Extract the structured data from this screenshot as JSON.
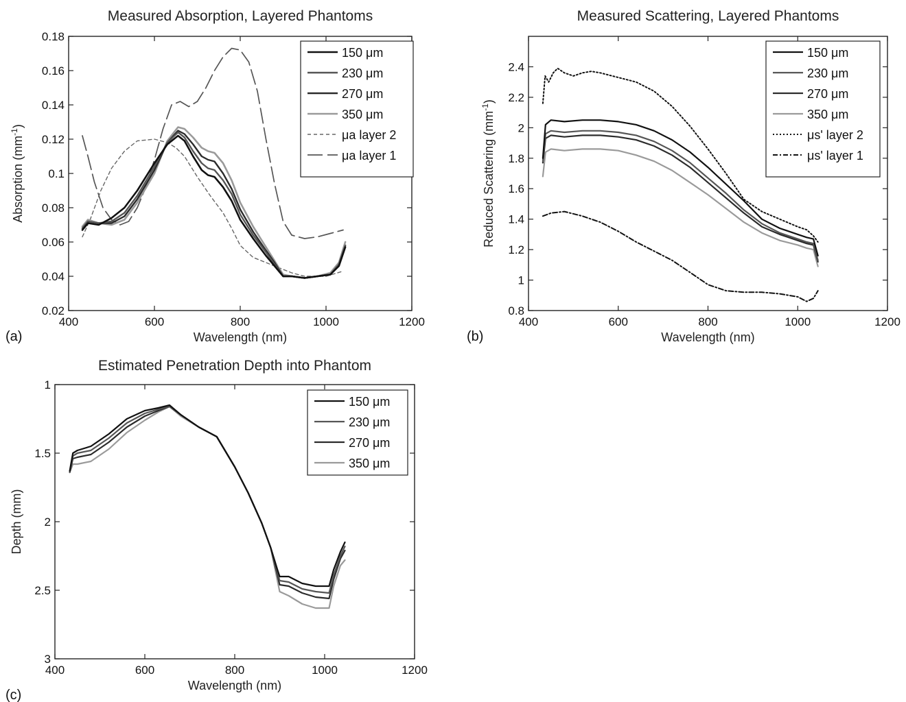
{
  "panel_letters": [
    "(a)",
    "(b)",
    "(c)"
  ],
  "chart_data": [
    {
      "type": "line",
      "title": "Measured Absorption, Layered Phantoms",
      "xlabel": "Wavelength (nm)",
      "ylabel": "Absorption (mm",
      "ylabel_sup": "-1",
      "ylabel_end": ")",
      "xlim": [
        400,
        1200
      ],
      "ylim": [
        0.02,
        0.18
      ],
      "y_reversed": false,
      "grid": false,
      "legend_position": "top-right",
      "xticks": [
        400,
        600,
        800,
        1000,
        1200
      ],
      "xtick_labels": [
        "400",
        "600",
        "800",
        "1000",
        "1200"
      ],
      "yticks": [
        0.02,
        0.04,
        0.06,
        0.08,
        0.1,
        0.12,
        0.14,
        0.16,
        0.18
      ],
      "ytick_labels": [
        "0.02",
        "0.04",
        "0.06",
        "0.08",
        "0.1",
        "0.12",
        "0.14",
        "0.16",
        "0.18"
      ],
      "series": [
        {
          "name": "150 μm",
          "color": "#111111",
          "dash": "",
          "width": 2.6,
          "x": [
            432,
            445,
            470,
            500,
            530,
            560,
            600,
            630,
            655,
            670,
            690,
            710,
            725,
            740,
            760,
            780,
            800,
            830,
            860,
            880,
            900,
            920,
            950,
            980,
            1010,
            1030,
            1045
          ],
          "y": [
            0.067,
            0.071,
            0.07,
            0.074,
            0.08,
            0.09,
            0.106,
            0.117,
            0.122,
            0.119,
            0.11,
            0.102,
            0.099,
            0.098,
            0.092,
            0.084,
            0.073,
            0.062,
            0.052,
            0.046,
            0.04,
            0.04,
            0.039,
            0.04,
            0.041,
            0.046,
            0.057
          ]
        },
        {
          "name": "230 μm",
          "color": "#555555",
          "dash": "",
          "width": 2.4,
          "x": [
            432,
            445,
            470,
            500,
            530,
            560,
            600,
            630,
            655,
            670,
            690,
            710,
            725,
            740,
            760,
            780,
            800,
            830,
            860,
            880,
            900,
            920,
            950,
            980,
            1010,
            1030,
            1045
          ],
          "y": [
            0.068,
            0.072,
            0.071,
            0.072,
            0.077,
            0.087,
            0.104,
            0.118,
            0.124,
            0.121,
            0.113,
            0.106,
            0.103,
            0.102,
            0.096,
            0.088,
            0.076,
            0.064,
            0.054,
            0.047,
            0.04,
            0.04,
            0.039,
            0.04,
            0.041,
            0.047,
            0.058
          ]
        },
        {
          "name": "270 μm",
          "color": "#2b2b2b",
          "dash": "",
          "width": 2.4,
          "x": [
            432,
            445,
            470,
            500,
            530,
            560,
            600,
            630,
            655,
            670,
            690,
            710,
            725,
            740,
            760,
            780,
            800,
            830,
            860,
            880,
            900,
            920,
            950,
            980,
            1010,
            1030,
            1045
          ],
          "y": [
            0.068,
            0.072,
            0.071,
            0.071,
            0.075,
            0.085,
            0.102,
            0.118,
            0.125,
            0.123,
            0.117,
            0.11,
            0.108,
            0.107,
            0.1,
            0.091,
            0.079,
            0.066,
            0.055,
            0.048,
            0.04,
            0.04,
            0.039,
            0.04,
            0.041,
            0.047,
            0.058
          ]
        },
        {
          "name": "350 μm",
          "color": "#9a9a9a",
          "dash": "",
          "width": 2.6,
          "x": [
            432,
            445,
            470,
            500,
            530,
            560,
            600,
            630,
            655,
            670,
            690,
            710,
            725,
            740,
            760,
            780,
            800,
            830,
            860,
            880,
            900,
            920,
            950,
            980,
            1010,
            1030,
            1045
          ],
          "y": [
            0.069,
            0.073,
            0.071,
            0.07,
            0.073,
            0.083,
            0.1,
            0.119,
            0.127,
            0.126,
            0.121,
            0.115,
            0.113,
            0.112,
            0.106,
            0.096,
            0.083,
            0.069,
            0.057,
            0.049,
            0.041,
            0.04,
            0.039,
            0.04,
            0.042,
            0.048,
            0.06
          ]
        },
        {
          "name": "μa layer 2",
          "color": "#666666",
          "dash": "5,4",
          "width": 1.4,
          "x": [
            432,
            450,
            475,
            500,
            530,
            560,
            600,
            630,
            650,
            670,
            700,
            730,
            760,
            780,
            800,
            830,
            860,
            890,
            920,
            950,
            1000,
            1040
          ],
          "y": [
            0.063,
            0.073,
            0.09,
            0.103,
            0.113,
            0.119,
            0.12,
            0.118,
            0.115,
            0.11,
            0.098,
            0.087,
            0.077,
            0.068,
            0.058,
            0.051,
            0.048,
            0.045,
            0.042,
            0.04,
            0.04,
            0.043
          ]
        },
        {
          "name": "μa layer 1",
          "color": "#555555",
          "dash": "22,7",
          "width": 1.7,
          "x": [
            432,
            445,
            460,
            480,
            500,
            520,
            540,
            560,
            580,
            600,
            620,
            640,
            660,
            680,
            700,
            720,
            740,
            760,
            780,
            800,
            820,
            840,
            860,
            880,
            900,
            920,
            950,
            980,
            1010,
            1040
          ],
          "y": [
            0.122,
            0.11,
            0.095,
            0.08,
            0.073,
            0.07,
            0.072,
            0.08,
            0.092,
            0.108,
            0.126,
            0.14,
            0.142,
            0.139,
            0.142,
            0.15,
            0.16,
            0.168,
            0.173,
            0.172,
            0.165,
            0.148,
            0.12,
            0.094,
            0.072,
            0.064,
            0.062,
            0.063,
            0.065,
            0.067
          ]
        }
      ]
    },
    {
      "type": "line",
      "title": "Measured Scattering, Layered Phantoms",
      "xlabel": "Wavelength (nm)",
      "ylabel": "Reduced Scattering (mm",
      "ylabel_sup": "-1",
      "ylabel_end": ")",
      "xlim": [
        400,
        1200
      ],
      "ylim": [
        0.8,
        2.6
      ],
      "y_reversed": false,
      "grid": false,
      "legend_position": "top-right",
      "xticks": [
        400,
        600,
        800,
        1000,
        1200
      ],
      "xtick_labels": [
        "400",
        "600",
        "800",
        "1000",
        "1200"
      ],
      "yticks": [
        0.8,
        1.0,
        1.2,
        1.4,
        1.6,
        1.8,
        2.0,
        2.2,
        2.4
      ],
      "ytick_labels": [
        "0.8",
        "1",
        "1.2",
        "1.4",
        "1.6",
        "1.8",
        "2",
        "2.2",
        "2.4"
      ],
      "series": [
        {
          "name": "150 μm",
          "color": "#111111",
          "dash": "",
          "width": 2.2,
          "x": [
            432,
            438,
            450,
            480,
            520,
            560,
            600,
            640,
            680,
            720,
            760,
            800,
            840,
            880,
            920,
            960,
            1000,
            1020,
            1035,
            1045
          ],
          "y": [
            1.8,
            2.02,
            2.05,
            2.04,
            2.05,
            2.05,
            2.04,
            2.02,
            1.98,
            1.92,
            1.84,
            1.74,
            1.63,
            1.52,
            1.4,
            1.34,
            1.3,
            1.28,
            1.27,
            1.16
          ]
        },
        {
          "name": "230 μm",
          "color": "#555555",
          "dash": "",
          "width": 2.2,
          "x": [
            432,
            438,
            450,
            480,
            520,
            560,
            600,
            640,
            680,
            720,
            760,
            800,
            840,
            880,
            920,
            960,
            1000,
            1020,
            1035,
            1045
          ],
          "y": [
            1.78,
            1.96,
            1.98,
            1.97,
            1.98,
            1.98,
            1.97,
            1.95,
            1.91,
            1.85,
            1.77,
            1.67,
            1.57,
            1.46,
            1.37,
            1.31,
            1.27,
            1.25,
            1.24,
            1.13
          ]
        },
        {
          "name": "270 μm",
          "color": "#2b2b2b",
          "dash": "",
          "width": 2.2,
          "x": [
            432,
            438,
            450,
            480,
            520,
            560,
            600,
            640,
            680,
            720,
            760,
            800,
            840,
            880,
            920,
            960,
            1000,
            1020,
            1035,
            1045
          ],
          "y": [
            1.77,
            1.93,
            1.95,
            1.94,
            1.95,
            1.95,
            1.94,
            1.92,
            1.88,
            1.82,
            1.74,
            1.64,
            1.54,
            1.44,
            1.35,
            1.3,
            1.26,
            1.24,
            1.23,
            1.12
          ]
        },
        {
          "name": "350 μm",
          "color": "#9a9a9a",
          "dash": "",
          "width": 2.2,
          "x": [
            432,
            438,
            450,
            480,
            520,
            560,
            600,
            640,
            680,
            720,
            760,
            800,
            840,
            880,
            920,
            960,
            1000,
            1020,
            1035,
            1045
          ],
          "y": [
            1.68,
            1.84,
            1.86,
            1.85,
            1.86,
            1.86,
            1.85,
            1.82,
            1.78,
            1.72,
            1.64,
            1.56,
            1.47,
            1.38,
            1.31,
            1.26,
            1.23,
            1.21,
            1.2,
            1.09
          ]
        },
        {
          "name": "μs' layer 2",
          "color": "#111111",
          "dash": "2,3",
          "width": 2.0,
          "x": [
            432,
            437,
            445,
            455,
            465,
            480,
            500,
            520,
            540,
            560,
            600,
            640,
            680,
            720,
            760,
            800,
            840,
            880,
            920,
            960,
            1000,
            1020,
            1035,
            1045
          ],
          "y": [
            2.16,
            2.34,
            2.3,
            2.36,
            2.39,
            2.36,
            2.34,
            2.36,
            2.37,
            2.36,
            2.33,
            2.3,
            2.24,
            2.14,
            2.01,
            1.86,
            1.7,
            1.53,
            1.45,
            1.4,
            1.35,
            1.33,
            1.29,
            1.25
          ]
        },
        {
          "name": "μs' layer 1",
          "color": "#111111",
          "dash": "7,3,2,3",
          "width": 2.0,
          "x": [
            432,
            450,
            480,
            520,
            560,
            600,
            640,
            680,
            720,
            760,
            800,
            840,
            880,
            920,
            960,
            1000,
            1020,
            1035,
            1045
          ],
          "y": [
            1.42,
            1.44,
            1.45,
            1.42,
            1.38,
            1.32,
            1.25,
            1.19,
            1.13,
            1.05,
            0.97,
            0.93,
            0.92,
            0.92,
            0.91,
            0.89,
            0.86,
            0.88,
            0.93
          ]
        }
      ]
    },
    {
      "type": "line",
      "title": "Estimated Penetration Depth into Phantom",
      "xlabel": "Wavelength (nm)",
      "ylabel": "Depth (mm)",
      "ylabel_sup": "",
      "ylabel_end": "",
      "xlim": [
        400,
        1200
      ],
      "ylim": [
        1,
        3
      ],
      "y_reversed": true,
      "grid": false,
      "legend_position": "top-right",
      "xticks": [
        400,
        600,
        800,
        1000,
        1200
      ],
      "xtick_labels": [
        "400",
        "600",
        "800",
        "1000",
        "1200"
      ],
      "yticks": [
        1,
        1.5,
        2,
        2.5,
        3
      ],
      "ytick_labels": [
        "1",
        "1.5",
        "2",
        "2.5",
        "3"
      ],
      "series": [
        {
          "name": "150 μm",
          "color": "#111111",
          "dash": "",
          "width": 2.2,
          "x": [
            433,
            440,
            450,
            480,
            520,
            560,
            600,
            630,
            655,
            680,
            720,
            760,
            800,
            830,
            860,
            880,
            895,
            900,
            920,
            950,
            980,
            1010,
            1020,
            1035,
            1045
          ],
          "y": [
            1.63,
            1.5,
            1.48,
            1.45,
            1.36,
            1.25,
            1.19,
            1.17,
            1.15,
            1.22,
            1.31,
            1.38,
            1.6,
            1.79,
            2.01,
            2.19,
            2.35,
            2.4,
            2.4,
            2.45,
            2.47,
            2.47,
            2.35,
            2.22,
            2.15
          ]
        },
        {
          "name": "230 μm",
          "color": "#555555",
          "dash": "",
          "width": 2.2,
          "x": [
            433,
            440,
            450,
            480,
            520,
            560,
            600,
            630,
            655,
            680,
            720,
            760,
            800,
            830,
            860,
            880,
            895,
            900,
            920,
            950,
            980,
            1010,
            1020,
            1035,
            1045
          ],
          "y": [
            1.64,
            1.52,
            1.5,
            1.48,
            1.39,
            1.28,
            1.21,
            1.18,
            1.16,
            1.22,
            1.31,
            1.38,
            1.6,
            1.79,
            2.01,
            2.19,
            2.37,
            2.43,
            2.44,
            2.49,
            2.51,
            2.52,
            2.39,
            2.25,
            2.18
          ]
        },
        {
          "name": "270 μm",
          "color": "#2b2b2b",
          "dash": "",
          "width": 2.2,
          "x": [
            433,
            440,
            450,
            480,
            520,
            560,
            600,
            630,
            655,
            680,
            720,
            760,
            800,
            830,
            860,
            880,
            895,
            900,
            920,
            950,
            980,
            1010,
            1020,
            1035,
            1045
          ],
          "y": [
            1.64,
            1.54,
            1.53,
            1.51,
            1.42,
            1.31,
            1.23,
            1.19,
            1.16,
            1.22,
            1.31,
            1.38,
            1.6,
            1.79,
            2.01,
            2.19,
            2.39,
            2.46,
            2.47,
            2.52,
            2.55,
            2.56,
            2.42,
            2.27,
            2.21
          ]
        },
        {
          "name": "350 μm",
          "color": "#9a9a9a",
          "dash": "",
          "width": 2.2,
          "x": [
            433,
            440,
            450,
            480,
            520,
            560,
            600,
            630,
            655,
            680,
            720,
            760,
            800,
            830,
            860,
            880,
            895,
            900,
            920,
            950,
            980,
            1010,
            1020,
            1035,
            1045
          ],
          "y": [
            1.64,
            1.58,
            1.58,
            1.56,
            1.47,
            1.35,
            1.26,
            1.2,
            1.16,
            1.23,
            1.31,
            1.38,
            1.6,
            1.79,
            2.01,
            2.19,
            2.43,
            2.51,
            2.54,
            2.6,
            2.63,
            2.63,
            2.47,
            2.32,
            2.28
          ]
        }
      ]
    }
  ]
}
